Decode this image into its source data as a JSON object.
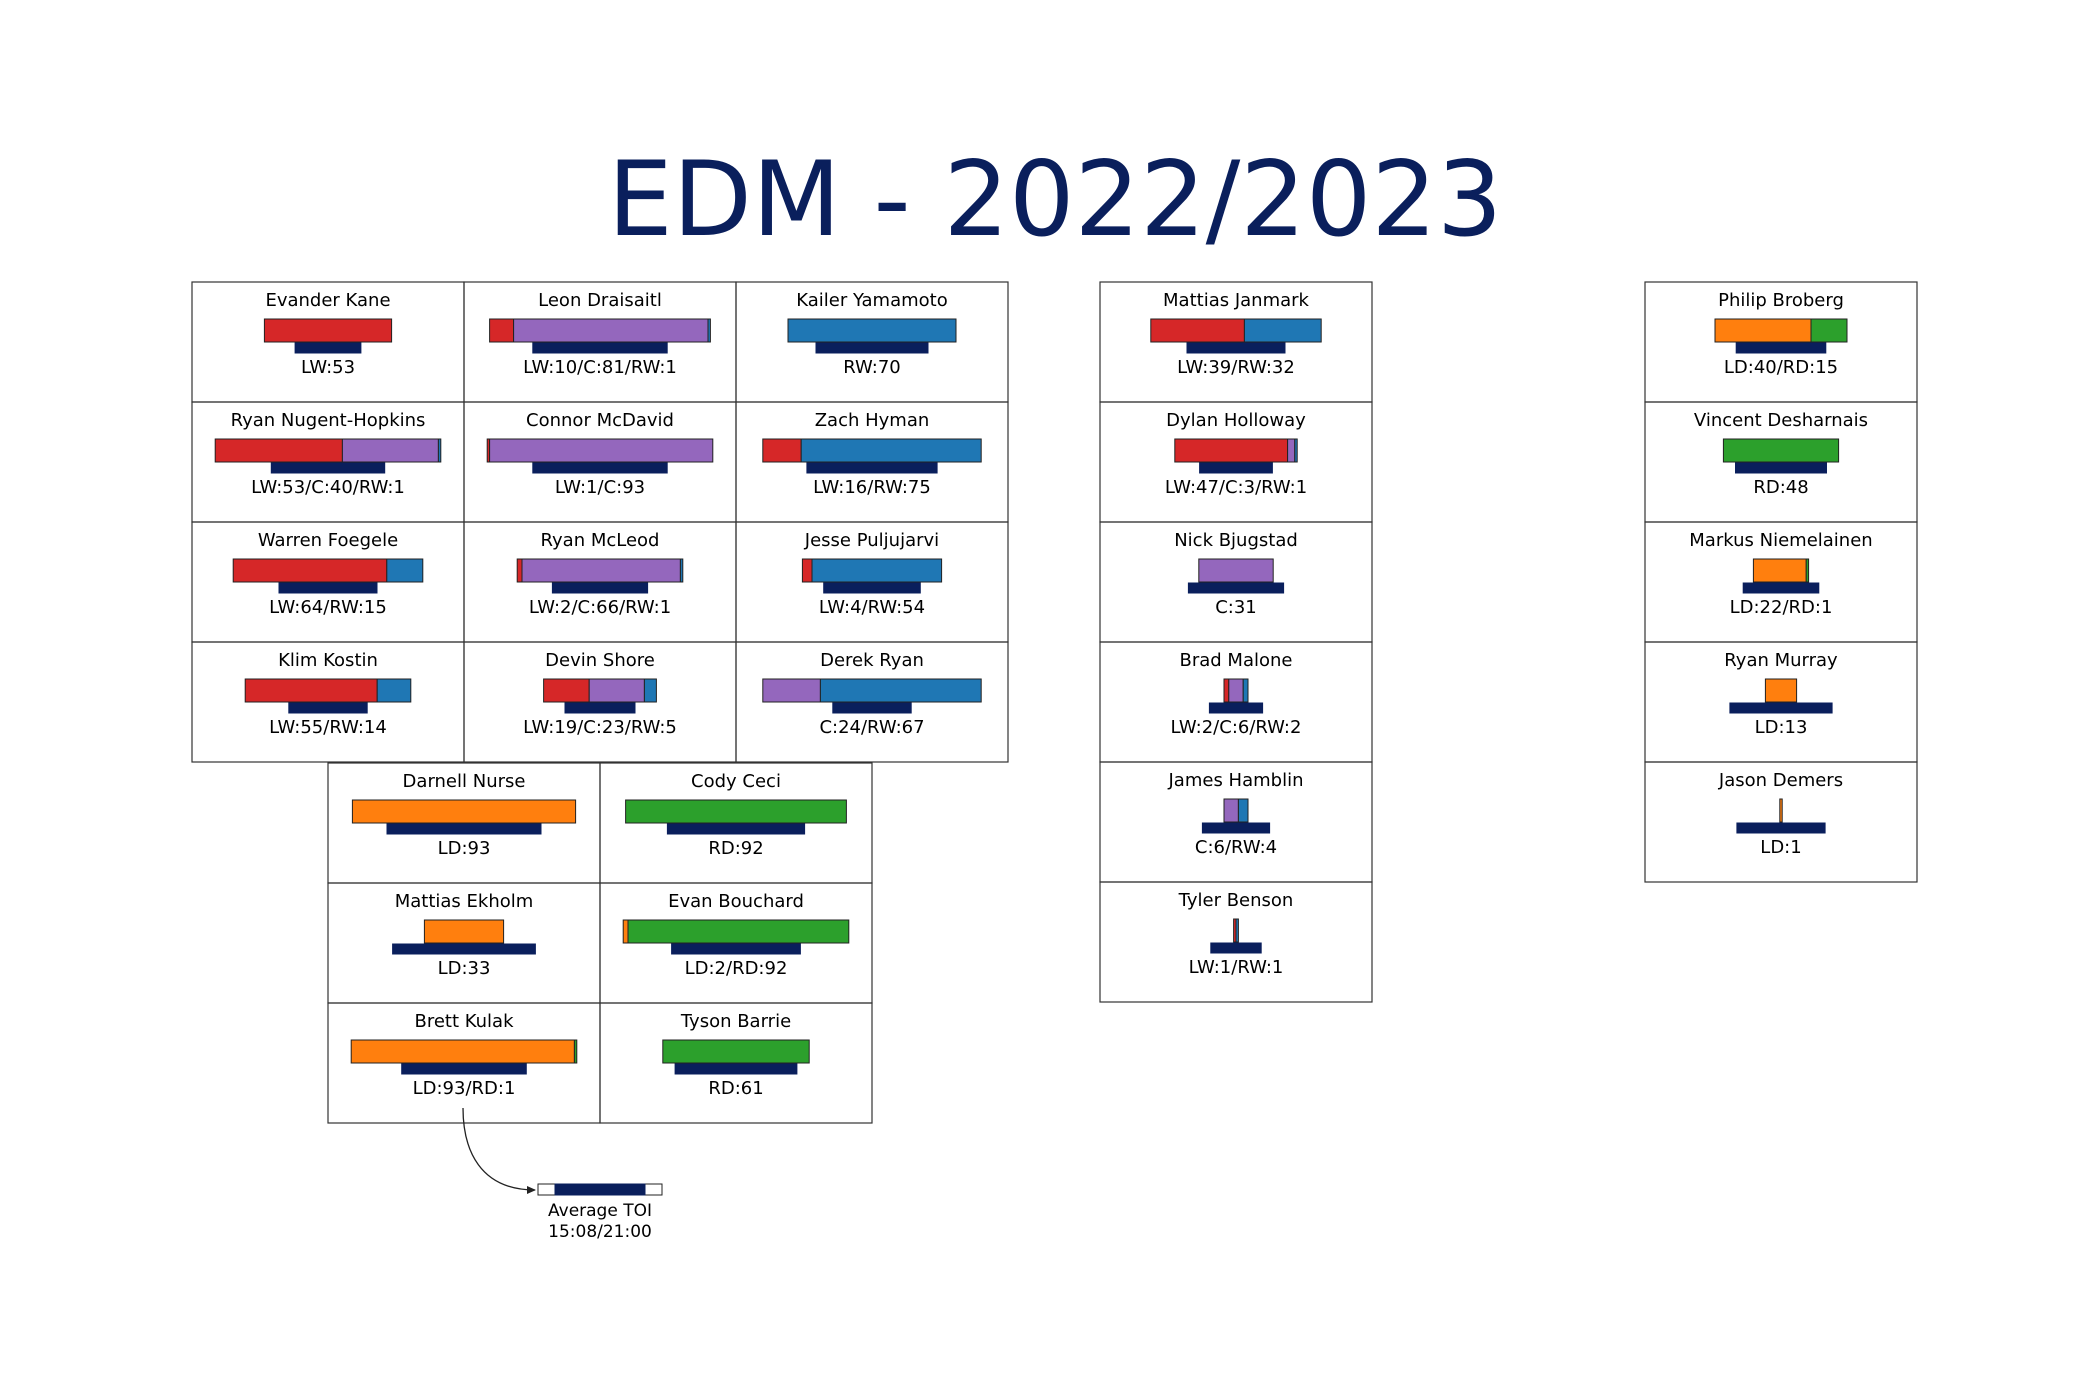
{
  "title": "EDM - 2022/2023",
  "colors": {
    "LW": "#d62728",
    "C": "#9467bd",
    "RW": "#1f77b4",
    "LD": "#ff7f0e",
    "RD": "#2ca02c",
    "toi": "#0a1f5c",
    "title": "#0a1f5c"
  },
  "chart_data": {
    "type": "bar",
    "title": "EDM - 2022/2023",
    "note": "Each cell: stacked bar of games played at each position (LW, C, RW, LD, RD) above a bar for average time on ice.",
    "toi_range": [
      "15:08",
      "21:00"
    ],
    "groups": [
      {
        "id": "forwards-main",
        "rows": 4,
        "cols": 3,
        "players": [
          {
            "name": "Evander Kane",
            "segments": [
              [
                "LW",
                53
              ]
            ],
            "label": "LW:53",
            "toi": 0.47
          },
          {
            "name": "Leon Draisaitl",
            "segments": [
              [
                "LW",
                10
              ],
              [
                "C",
                81
              ],
              [
                "RW",
                1
              ]
            ],
            "label": "LW:10/C:81/RW:1",
            "toi": 0.96
          },
          {
            "name": "Kailer Yamamoto",
            "segments": [
              [
                "RW",
                70
              ]
            ],
            "label": "RW:70",
            "toi": 0.8
          },
          {
            "name": "Ryan Nugent-Hopkins",
            "segments": [
              [
                "LW",
                53
              ],
              [
                "C",
                40
              ],
              [
                "RW",
                1
              ]
            ],
            "label": "LW:53/C:40/RW:1",
            "toi": 0.81
          },
          {
            "name": "Connor McDavid",
            "segments": [
              [
                "LW",
                1
              ],
              [
                "C",
                93
              ]
            ],
            "label": "LW:1/C:93",
            "toi": 0.96
          },
          {
            "name": "Zach Hyman",
            "segments": [
              [
                "LW",
                16
              ],
              [
                "RW",
                75
              ]
            ],
            "label": "LW:16/RW:75",
            "toi": 0.93
          },
          {
            "name": "Warren Foegele",
            "segments": [
              [
                "LW",
                64
              ],
              [
                "RW",
                15
              ]
            ],
            "label": "LW:64/RW:15",
            "toi": 0.7
          },
          {
            "name": "Ryan McLeod",
            "segments": [
              [
                "LW",
                2
              ],
              [
                "C",
                66
              ],
              [
                "RW",
                1
              ]
            ],
            "label": "LW:2/C:66/RW:1",
            "toi": 0.68
          },
          {
            "name": "Jesse Puljujarvi",
            "segments": [
              [
                "LW",
                4
              ],
              [
                "RW",
                54
              ]
            ],
            "label": "LW:4/RW:54",
            "toi": 0.69
          },
          {
            "name": "Klim Kostin",
            "segments": [
              [
                "LW",
                55
              ],
              [
                "RW",
                14
              ]
            ],
            "label": "LW:55/RW:14",
            "toi": 0.56
          },
          {
            "name": "Devin Shore",
            "segments": [
              [
                "LW",
                19
              ],
              [
                "C",
                23
              ],
              [
                "RW",
                5
              ]
            ],
            "label": "LW:19/C:23/RW:5",
            "toi": 0.5
          },
          {
            "name": "Derek Ryan",
            "segments": [
              [
                "C",
                24
              ],
              [
                "RW",
                67
              ]
            ],
            "label": "C:24/RW:67",
            "toi": 0.56
          }
        ]
      },
      {
        "id": "defense-main",
        "rows": 3,
        "cols": 2,
        "players": [
          {
            "name": "Darnell Nurse",
            "segments": [
              [
                "LD",
                93
              ]
            ],
            "label": "LD:93",
            "toi": 1.1
          },
          {
            "name": "Cody Ceci",
            "segments": [
              [
                "RD",
                92
              ]
            ],
            "label": "RD:92",
            "toi": 0.98
          },
          {
            "name": "Mattias Ekholm",
            "segments": [
              [
                "LD",
                33
              ]
            ],
            "label": "LD:33",
            "toi": 1.02
          },
          {
            "name": "Evan Bouchard",
            "segments": [
              [
                "LD",
                2
              ],
              [
                "RD",
                92
              ]
            ],
            "label": "LD:2/RD:92",
            "toi": 0.92
          },
          {
            "name": "Brett Kulak",
            "segments": [
              [
                "LD",
                93
              ],
              [
                "RD",
                1
              ]
            ],
            "label": "LD:93/RD:1",
            "toi": 0.89
          },
          {
            "name": "Tyson Barrie",
            "segments": [
              [
                "RD",
                61
              ]
            ],
            "label": "RD:61",
            "toi": 0.87
          }
        ]
      },
      {
        "id": "forwards-extra",
        "rows": 6,
        "cols": 1,
        "players": [
          {
            "name": "Mattias Janmark",
            "segments": [
              [
                "LW",
                39
              ],
              [
                "RW",
                32
              ]
            ],
            "label": "LW:39/RW:32",
            "toi": 0.7
          },
          {
            "name": "Dylan Holloway",
            "segments": [
              [
                "LW",
                47
              ],
              [
                "C",
                3
              ],
              [
                "RW",
                1
              ]
            ],
            "label": "LW:47/C:3/RW:1",
            "toi": 0.52
          },
          {
            "name": "Nick Bjugstad",
            "segments": [
              [
                "C",
                31
              ]
            ],
            "label": "C:31",
            "toi": 0.68
          },
          {
            "name": "Brad Malone",
            "segments": [
              [
                "LW",
                2
              ],
              [
                "C",
                6
              ],
              [
                "RW",
                2
              ]
            ],
            "label": "LW:2/C:6/RW:2",
            "toi": 0.38
          },
          {
            "name": "James Hamblin",
            "segments": [
              [
                "C",
                6
              ],
              [
                "RW",
                4
              ]
            ],
            "label": "C:6/RW:4",
            "toi": 0.48
          },
          {
            "name": "Tyler Benson",
            "segments": [
              [
                "LW",
                1
              ],
              [
                "RW",
                1
              ]
            ],
            "label": "LW:1/RW:1",
            "toi": 0.36
          }
        ]
      },
      {
        "id": "defense-extra",
        "rows": 5,
        "cols": 1,
        "players": [
          {
            "name": "Philip Broberg",
            "segments": [
              [
                "LD",
                40
              ],
              [
                "RD",
                15
              ]
            ],
            "label": "LD:40/RD:15",
            "toi": 0.64
          },
          {
            "name": "Vincent Desharnais",
            "segments": [
              [
                "RD",
                48
              ]
            ],
            "label": "RD:48",
            "toi": 0.65
          },
          {
            "name": "Markus Niemelainen",
            "segments": [
              [
                "LD",
                22
              ],
              [
                "RD",
                1
              ]
            ],
            "label": "LD:22/RD:1",
            "toi": 0.54
          },
          {
            "name": "Ryan Murray",
            "segments": [
              [
                "LD",
                13
              ]
            ],
            "label": "LD:13",
            "toi": 0.73
          },
          {
            "name": "Jason Demers",
            "segments": [
              [
                "LD",
                1
              ]
            ],
            "label": "LD:1",
            "toi": 0.63
          }
        ]
      }
    ],
    "legend": {
      "label": "Average TOI",
      "range_text": "15:08/21:00"
    }
  }
}
